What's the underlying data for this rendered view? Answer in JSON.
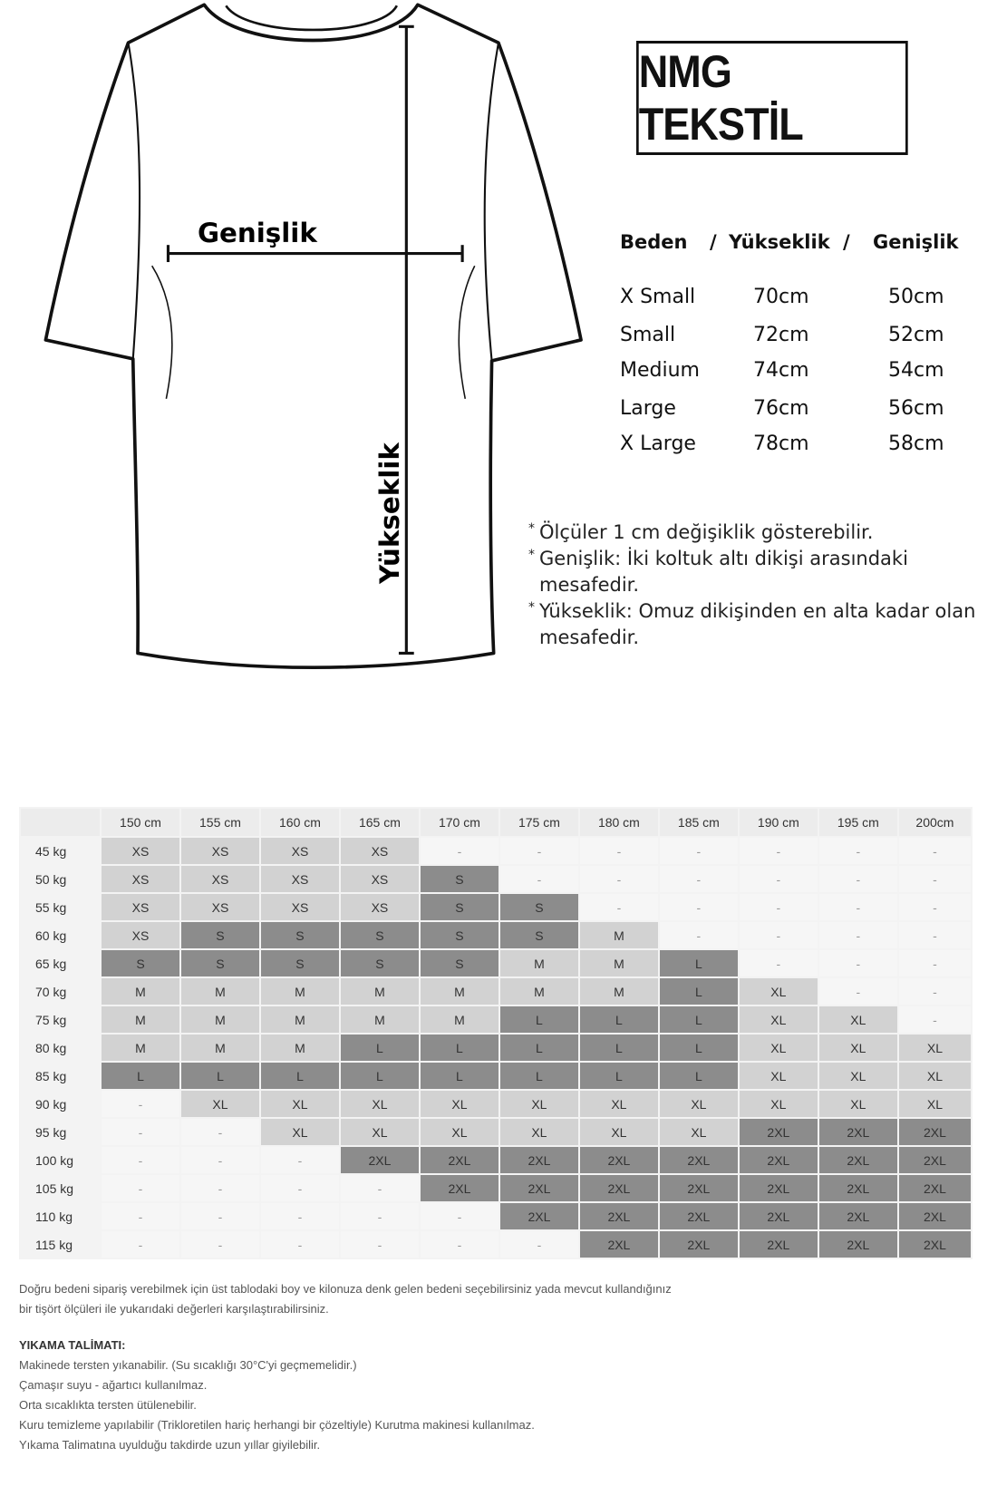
{
  "brand": "NMG TEKSTİL",
  "diagram": {
    "width_label": "Genişlik",
    "height_label": "Yükseklik"
  },
  "size_table": {
    "headers": [
      "Beden",
      "/",
      "Yükseklik",
      "/",
      "Genişlik"
    ],
    "rows": [
      {
        "size": "X Small",
        "height": "70cm",
        "width": "50cm"
      },
      {
        "size": "Small",
        "height": "72cm",
        "width": "52cm"
      },
      {
        "size": "Medium",
        "height": "74cm",
        "width": "54cm"
      },
      {
        "size": "Large",
        "height": "76cm",
        "width": "56cm"
      },
      {
        "size": "X Large",
        "height": "78cm",
        "width": "58cm"
      }
    ]
  },
  "notes": [
    "Ölçüler 1 cm değişiklik gösterebilir.",
    "Genişlik: İki koltuk altı dikişi arasındaki mesafedir.",
    "Yükseklik: Omuz dikişinden en alta kadar olan mesafedir."
  ],
  "colors": {
    "light": "#d2d2d2",
    "dark": "#8c8c8c",
    "empty": "#f6f6f6"
  },
  "grid": {
    "columns": [
      "150 cm",
      "155 cm",
      "160 cm",
      "165 cm",
      "170 cm",
      "175 cm",
      "180 cm",
      "185 cm",
      "190 cm",
      "195 cm",
      "200cm"
    ],
    "rows": [
      {
        "label": "45 kg",
        "cells": [
          "XS",
          "XS",
          "XS",
          "XS",
          "-",
          "-",
          "-",
          "-",
          "-",
          "-",
          "-"
        ]
      },
      {
        "label": "50 kg",
        "cells": [
          "XS",
          "XS",
          "XS",
          "XS",
          "S",
          "-",
          "-",
          "-",
          "-",
          "-",
          "-"
        ]
      },
      {
        "label": "55 kg",
        "cells": [
          "XS",
          "XS",
          "XS",
          "XS",
          "S",
          "S",
          "-",
          "-",
          "-",
          "-",
          "-"
        ]
      },
      {
        "label": "60 kg",
        "cells": [
          "XS",
          "S",
          "S",
          "S",
          "S",
          "S",
          "M",
          "-",
          "-",
          "-",
          "-"
        ]
      },
      {
        "label": "65 kg",
        "cells": [
          "S",
          "S",
          "S",
          "S",
          "S",
          "M",
          "M",
          "L",
          "-",
          "-",
          "-"
        ]
      },
      {
        "label": "70 kg",
        "cells": [
          "M",
          "M",
          "M",
          "M",
          "M",
          "M",
          "M",
          "L",
          "XL",
          "-",
          "-"
        ]
      },
      {
        "label": "75 kg",
        "cells": [
          "M",
          "M",
          "M",
          "M",
          "M",
          "L",
          "L",
          "L",
          "XL",
          "XL",
          "-"
        ]
      },
      {
        "label": "80 kg",
        "cells": [
          "M",
          "M",
          "M",
          "L",
          "L",
          "L",
          "L",
          "L",
          "XL",
          "XL",
          "XL"
        ]
      },
      {
        "label": "85 kg",
        "cells": [
          "L",
          "L",
          "L",
          "L",
          "L",
          "L",
          "L",
          "L",
          "XL",
          "XL",
          "XL"
        ]
      },
      {
        "label": "90 kg",
        "cells": [
          "-",
          "XL",
          "XL",
          "XL",
          "XL",
          "XL",
          "XL",
          "XL",
          "XL",
          "XL",
          "XL"
        ]
      },
      {
        "label": "95 kg",
        "cells": [
          "-",
          "-",
          "XL",
          "XL",
          "XL",
          "XL",
          "XL",
          "XL",
          "2XL",
          "2XL",
          "2XL"
        ]
      },
      {
        "label": "100 kg",
        "cells": [
          "-",
          "-",
          "-",
          "2XL",
          "2XL",
          "2XL",
          "2XL",
          "2XL",
          "2XL",
          "2XL",
          "2XL"
        ]
      },
      {
        "label": "105 kg",
        "cells": [
          "-",
          "-",
          "-",
          "-",
          "2XL",
          "2XL",
          "2XL",
          "2XL",
          "2XL",
          "2XL",
          "2XL"
        ]
      },
      {
        "label": "110 kg",
        "cells": [
          "-",
          "-",
          "-",
          "-",
          "-",
          "2XL",
          "2XL",
          "2XL",
          "2XL",
          "2XL",
          "2XL"
        ]
      },
      {
        "label": "115 kg",
        "cells": [
          "-",
          "-",
          "-",
          "-",
          "-",
          "-",
          "2XL",
          "2XL",
          "2XL",
          "2XL",
          "2XL"
        ]
      }
    ]
  },
  "footer": {
    "intro": [
      "Doğru bedeni sipariş verebilmek için üst tablodaki  boy ve kilonuza denk gelen bedeni seçebilirsiniz yada mevcut kullandığınız",
      "bir tişört ölçüleri ile yukarıdaki değerleri karşılaştırabilirsiniz."
    ],
    "wash_title": "YIKAMA TALİMATI:",
    "wash_lines": [
      "Makinede tersten yıkanabilir. (Su sıcaklığı 30°C'yi geçmemelidir.)",
      "Çamaşır suyu - ağartıcı kullanılmaz.",
      "Orta sıcaklıkta tersten ütülenebilir.",
      "Kuru temizleme yapılabilir (Trikloretilen hariç herhangi bir çözeltiyle) Kurutma makinesi kullanılmaz.",
      "Yıkama Talimatına uyulduğu takdirde uzun yıllar giyilebilir."
    ]
  }
}
